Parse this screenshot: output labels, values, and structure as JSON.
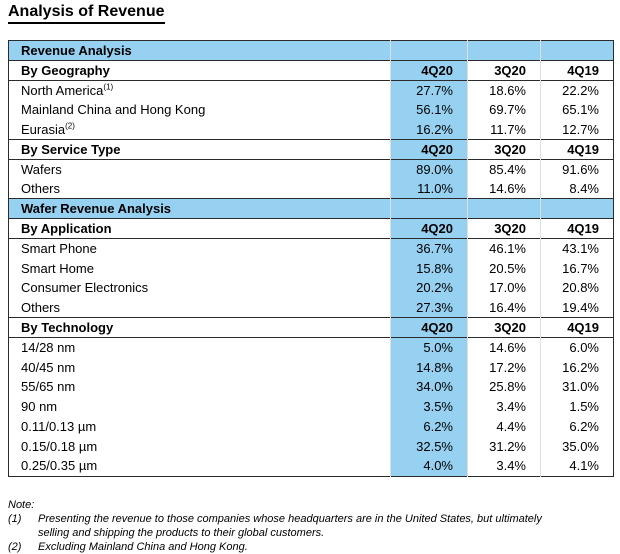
{
  "accent_color": "#97d1f1",
  "page_title": "Analysis of Revenue",
  "table": {
    "section1_header": "Revenue Analysis",
    "section2_header": "Wafer Revenue Analysis",
    "columns": [
      "4Q20",
      "3Q20",
      "4Q19"
    ],
    "groups": [
      {
        "header": "By Geography",
        "rows": [
          {
            "label": "North America",
            "sup": "(1)",
            "values": [
              "27.7%",
              "18.6%",
              "22.2%"
            ]
          },
          {
            "label": "Mainland China and Hong Kong",
            "sup": "",
            "values": [
              "56.1%",
              "69.7%",
              "65.1%"
            ]
          },
          {
            "label": "Eurasia",
            "sup": "(2)",
            "values": [
              "16.2%",
              "11.7%",
              "12.7%"
            ]
          }
        ]
      },
      {
        "header": "By Service Type",
        "rows": [
          {
            "label": "Wafers",
            "values": [
              "89.0%",
              "85.4%",
              "91.6%"
            ]
          },
          {
            "label": "Others",
            "values": [
              "11.0%",
              "14.6%",
              "8.4%"
            ]
          }
        ]
      },
      {
        "header": "By Application",
        "rows": [
          {
            "label": "Smart Phone",
            "values": [
              "36.7%",
              "46.1%",
              "43.1%"
            ]
          },
          {
            "label": "Smart Home",
            "values": [
              "15.8%",
              "20.5%",
              "16.7%"
            ]
          },
          {
            "label": "Consumer Electronics",
            "values": [
              "20.2%",
              "17.0%",
              "20.8%"
            ]
          },
          {
            "label": "Others",
            "values": [
              "27.3%",
              "16.4%",
              "19.4%"
            ]
          }
        ]
      },
      {
        "header": "By Technology",
        "rows": [
          {
            "label": "14/28 nm",
            "values": [
              "5.0%",
              "14.6%",
              "6.0%"
            ]
          },
          {
            "label": "40/45 nm",
            "values": [
              "14.8%",
              "17.2%",
              "16.2%"
            ]
          },
          {
            "label": "55/65 nm",
            "values": [
              "34.0%",
              "25.8%",
              "31.0%"
            ]
          },
          {
            "label": "90 nm",
            "values": [
              "3.5%",
              "3.4%",
              "1.5%"
            ]
          },
          {
            "label": "0.11/0.13 µm",
            "values": [
              "6.2%",
              "4.4%",
              "6.2%"
            ]
          },
          {
            "label": "0.15/0.18 µm",
            "values": [
              "32.5%",
              "31.2%",
              "35.0%"
            ]
          },
          {
            "label": "0.25/0.35 µm",
            "values": [
              "4.0%",
              "3.4%",
              "4.1%"
            ]
          }
        ]
      }
    ]
  },
  "notes": {
    "title": "Note:",
    "items": [
      {
        "num": "(1)",
        "text": "Presenting the revenue to those companies whose headquarters are in the United States, but ultimately selling and shipping the products to their global customers."
      },
      {
        "num": "(2)",
        "text": "Excluding Mainland China and Hong Kong."
      }
    ]
  }
}
